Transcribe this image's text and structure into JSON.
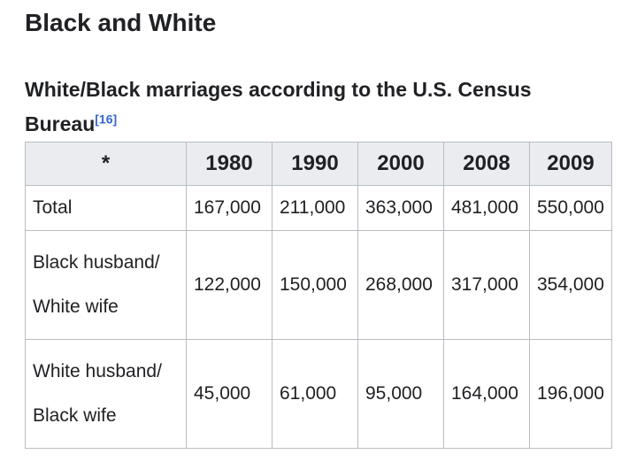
{
  "section": {
    "title": "Black and White"
  },
  "tableData": {
    "caption": "White/Black marriages according to the U.S. Census Bureau",
    "caption_ref": "[16]",
    "header": [
      "*",
      "1980",
      "1990",
      "2000",
      "2008",
      "2009"
    ],
    "rows": [
      {
        "label": "Total",
        "values": [
          "167,000",
          "211,000",
          "363,000",
          "481,000",
          "550,000"
        ]
      },
      {
        "label": "Black husband/ White wife",
        "values": [
          "122,000",
          "150,000",
          "268,000",
          "317,000",
          "354,000"
        ]
      },
      {
        "label": "White husband/ Black wife",
        "values": [
          "45,000",
          "61,000",
          "95,000",
          "164,000",
          "196,000"
        ]
      }
    ],
    "colors": {
      "text": "#202124",
      "link_blue": "#3366cc",
      "header_bg": "#eaecf0",
      "border": "#b8bcc1",
      "background": "#ffffff"
    }
  }
}
